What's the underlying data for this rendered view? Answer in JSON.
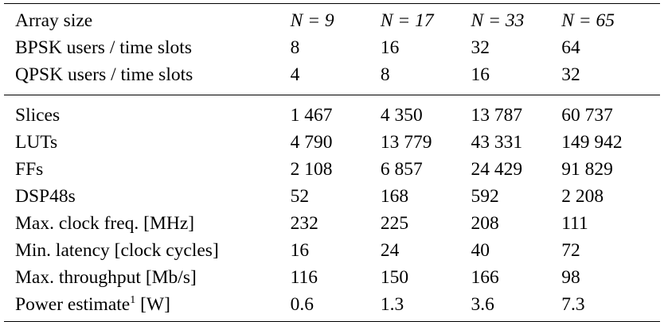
{
  "header_rows": [
    {
      "label": "Array size",
      "values": [
        "N = 9",
        "N = 17",
        "N = 33",
        "N = 65"
      ]
    },
    {
      "label": "BPSK users / time slots",
      "values": [
        "8",
        "16",
        "32",
        "64"
      ]
    },
    {
      "label": "QPSK users / time slots",
      "values": [
        "4",
        "8",
        "16",
        "32"
      ]
    }
  ],
  "body_rows": [
    {
      "label": "Slices",
      "values": [
        "1 467",
        "4 350",
        "13 787",
        "60 737"
      ]
    },
    {
      "label": "LUTs",
      "values": [
        "4 790",
        "13 779",
        "43 331",
        "149 942"
      ]
    },
    {
      "label": "FFs",
      "values": [
        "2 108",
        "6 857",
        "24 429",
        "91 829"
      ]
    },
    {
      "label": "DSP48s",
      "values": [
        "52",
        "168",
        "592",
        "2 208"
      ]
    },
    {
      "label": "Max. clock freq. [MHz]",
      "values": [
        "232",
        "225",
        "208",
        "111"
      ]
    },
    {
      "label": "Min. latency [clock cycles]",
      "values": [
        "16",
        "24",
        "40",
        "72"
      ]
    },
    {
      "label": "Max. throughput [Mb/s]",
      "values": [
        "116",
        "150",
        "166",
        "98"
      ]
    },
    {
      "label": "Power estimate",
      "footnote": "1",
      "unit": " [W]",
      "values": [
        "0.6",
        "1.3",
        "3.6",
        "7.3"
      ]
    }
  ]
}
